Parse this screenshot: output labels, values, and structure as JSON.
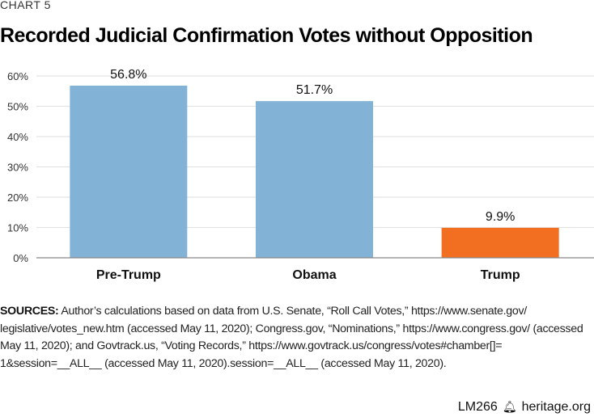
{
  "header": {
    "kicker": "CHART 5",
    "title": "Recorded Judicial Confirmation Votes without Opposition"
  },
  "chart_data": {
    "type": "bar",
    "title": "Recorded Judicial Confirmation Votes without Opposition",
    "categories": [
      "Pre-Trump",
      "Obama",
      "Trump"
    ],
    "values": [
      56.8,
      51.7,
      9.9
    ],
    "data_labels": [
      "56.8%",
      "51.7%",
      "9.9%"
    ],
    "colors": [
      "#82b3d7",
      "#82b3d7",
      "#f26f21"
    ],
    "xlabel": "",
    "ylabel": "",
    "ylim": [
      0,
      60
    ],
    "yticks": [
      0,
      10,
      20,
      30,
      40,
      50,
      60
    ],
    "ytick_labels": [
      "0%",
      "10%",
      "20%",
      "30%",
      "40%",
      "50%",
      "60%"
    ],
    "grid": true,
    "legend": "none"
  },
  "sources": {
    "label": "SOURCES:",
    "text": "Author’s calculations based on data from U.S. Senate, “Roll Call Votes,” https://www.senate.gov/ legislative/votes_new.htm (accessed May 11, 2020); Congress.gov, “Nominations,” https://www.congress.gov/ (accessed May 11, 2020); and Govtrack.us, “Voting Records,” https://www.govtrack.us/congress/votes#chamber[]= 1&session=__ALL__ (accessed May 11, 2020).session=__ALL__ (accessed May 11, 2020)."
  },
  "footer": {
    "code": "LM266",
    "icon": "liberty-bell-icon",
    "site": "heritage.org"
  }
}
